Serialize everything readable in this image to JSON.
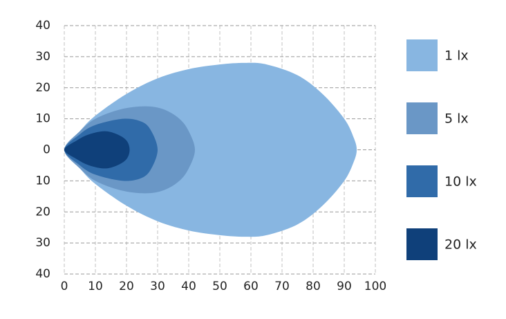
{
  "chart_data": {
    "type": "contour",
    "xlim": [
      0,
      100
    ],
    "xticks": [
      0,
      10,
      20,
      30,
      40,
      50,
      60,
      70,
      80,
      90,
      100
    ],
    "ylim": [
      -40,
      40
    ],
    "yticks": [
      {
        "value": 40,
        "label": "40"
      },
      {
        "value": 30,
        "label": "30"
      },
      {
        "value": 20,
        "label": "20"
      },
      {
        "value": 10,
        "label": "10"
      },
      {
        "value": 0,
        "label": "0"
      },
      {
        "value": -10,
        "label": "10"
      },
      {
        "value": -20,
        "label": "20"
      },
      {
        "value": -30,
        "label": "30"
      },
      {
        "value": -40,
        "label": "40"
      }
    ],
    "grid": true,
    "legend": "right",
    "series": [
      {
        "name": "1 lx",
        "color": "#88b6e1",
        "x": [
          0,
          5,
          10,
          20,
          30,
          40,
          50,
          58,
          65,
          75,
          83,
          90,
          93,
          94,
          93,
          90,
          83,
          75,
          65,
          58,
          50,
          40,
          30,
          20,
          10,
          5
        ],
        "y": [
          0,
          6,
          11,
          18,
          23,
          26,
          27.5,
          28,
          27.5,
          24,
          18,
          10,
          4,
          0,
          -4,
          -10,
          -18,
          -24,
          -27.5,
          -28,
          -27.5,
          -26,
          -23,
          -18,
          -11,
          -6
        ]
      },
      {
        "name": "5 lx",
        "color": "#6a97c6",
        "x": [
          0,
          5,
          10,
          18,
          26,
          32,
          37,
          40,
          42,
          40,
          37,
          32,
          26,
          18,
          10,
          5
        ],
        "y": [
          0,
          6,
          10,
          13,
          14,
          13,
          10,
          6,
          0,
          -6,
          -10,
          -13,
          -14,
          -13,
          -10,
          -6
        ]
      },
      {
        "name": "10 lx",
        "color": "#306ba9",
        "x": [
          0,
          5,
          10,
          19,
          25,
          28,
          30,
          28,
          25,
          19,
          10,
          5
        ],
        "y": [
          0,
          5,
          8,
          10,
          9,
          6,
          0,
          -6,
          -9,
          -10,
          -8,
          -5
        ]
      },
      {
        "name": "20 lx",
        "color": "#0f407a",
        "x": [
          0,
          4,
          8,
          13,
          17,
          20,
          21,
          20,
          17,
          13,
          8,
          4
        ],
        "y": [
          0,
          3,
          5,
          6,
          5,
          3,
          0,
          -3,
          -5,
          -6,
          -5,
          -3
        ]
      }
    ]
  }
}
